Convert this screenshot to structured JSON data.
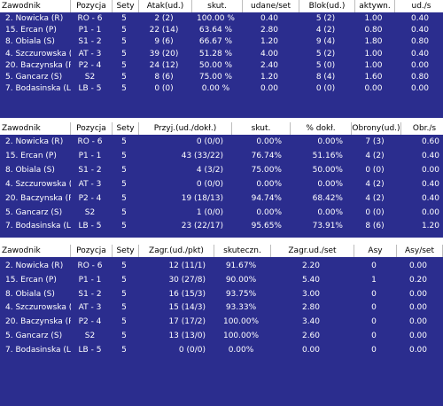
{
  "tables": [
    {
      "columns": [
        "Zawodnik",
        "Pozycja",
        "Sety",
        "Atak(ud.)",
        "skut.",
        "udane/set",
        "Blok(ud.)",
        "aktywn.",
        "ud./s"
      ],
      "rows": [
        [
          "2. Nowicka (R)",
          "RO - 6",
          "5",
          "2 (2)",
          "100.00 %",
          "0.40",
          "5 (2)",
          "1.00",
          "0.40"
        ],
        [
          "15. Ercan (P)",
          "P1 - 1",
          "5",
          "22 (14)",
          "63.64 %",
          "2.80",
          "4 (2)",
          "0.80",
          "0.40"
        ],
        [
          "8. Obiala (S)",
          "S1 - 2",
          "5",
          "9 (6)",
          "66.67 %",
          "1.20",
          "9 (4)",
          "1.80",
          "0.80"
        ],
        [
          "4. Szczurowska (A)",
          "AT - 3",
          "5",
          "39 (20)",
          "51.28 %",
          "4.00",
          "5 (2)",
          "1.00",
          "0.40"
        ],
        [
          "20. Baczynska (P)",
          "P2 - 4",
          "5",
          "24 (12)",
          "50.00 %",
          "2.40",
          "5 (0)",
          "1.00",
          "0.00"
        ],
        [
          "5. Gancarz (S)",
          "S2",
          "5",
          "8 (6)",
          "75.00 %",
          "1.20",
          "8 (4)",
          "1.60",
          "0.80"
        ],
        [
          "7. Bodasinska (L)",
          "LB - 5",
          "5",
          "0 (0)",
          "0.00 %",
          "0.00",
          "0 (0)",
          "0.00",
          "0.00"
        ]
      ]
    },
    {
      "columns": [
        "Zawodnik",
        "Pozycja",
        "Sety",
        "Przyj.(ud./dokł.)",
        "skut.",
        "% dokł.",
        "Obrony(ud.)",
        "Obr./s"
      ],
      "rows": [
        [
          "2. Nowicka (R)",
          "RO - 6",
          "5",
          "0 (0/0)",
          "0.00%",
          "0.00%",
          "7 (3)",
          "0.60"
        ],
        [
          "15. Ercan (P)",
          "P1 - 1",
          "5",
          "43 (33/22)",
          "76.74%",
          "51.16%",
          "4 (2)",
          "0.40"
        ],
        [
          "8. Obiala (S)",
          "S1 - 2",
          "5",
          "4 (3/2)",
          "75.00%",
          "50.00%",
          "0 (0)",
          "0.00"
        ],
        [
          "4. Szczurowska (A)",
          "AT - 3",
          "5",
          "0 (0/0)",
          "0.00%",
          "0.00%",
          "4 (2)",
          "0.40"
        ],
        [
          "20. Baczynska (P)",
          "P2 - 4",
          "5",
          "19 (18/13)",
          "94.74%",
          "68.42%",
          "4 (2)",
          "0.40"
        ],
        [
          "5. Gancarz (S)",
          "S2",
          "5",
          "1 (0/0)",
          "0.00%",
          "0.00%",
          "0 (0)",
          "0.00"
        ],
        [
          "7. Bodasinska (L)",
          "LB - 5",
          "5",
          "23 (22/17)",
          "95.65%",
          "73.91%",
          "8 (6)",
          "1.20"
        ]
      ]
    },
    {
      "columns": [
        "Zawodnik",
        "Pozycja",
        "Sety",
        "Zagr.(ud./pkt)",
        "skuteczn.",
        "Zagr.ud./set",
        "Asy",
        "Asy/set"
      ],
      "rows": [
        [
          "2. Nowicka (R)",
          "RO - 6",
          "5",
          "12 (11/1)",
          "91.67%",
          "2.20",
          "0",
          "0.00"
        ],
        [
          "15. Ercan (P)",
          "P1 - 1",
          "5",
          "30 (27/8)",
          "90.00%",
          "5.40",
          "1",
          "0.20"
        ],
        [
          "8. Obiala (S)",
          "S1 - 2",
          "5",
          "16 (15/3)",
          "93.75%",
          "3.00",
          "0",
          "0.00"
        ],
        [
          "4. Szczurowska (A)",
          "AT - 3",
          "5",
          "15 (14/3)",
          "93.33%",
          "2.80",
          "0",
          "0.00"
        ],
        [
          "20. Baczynska (P)",
          "P2 - 4",
          "5",
          "17 (17/2)",
          "100.00%",
          "3.40",
          "0",
          "0.00"
        ],
        [
          "5. Gancarz (S)",
          "S2",
          "5",
          "13 (13/0)",
          "100.00%",
          "2.60",
          "0",
          "0.00"
        ],
        [
          "7. Bodasinska (L)",
          "LB - 5",
          "5",
          "0 (0/0)",
          "0.00%",
          "0.00",
          "0",
          "0.00"
        ]
      ]
    }
  ],
  "colors": {
    "panel_bg": "#2b2d8e",
    "header_bg": "#ffffff",
    "row_text": "#ffffff"
  }
}
